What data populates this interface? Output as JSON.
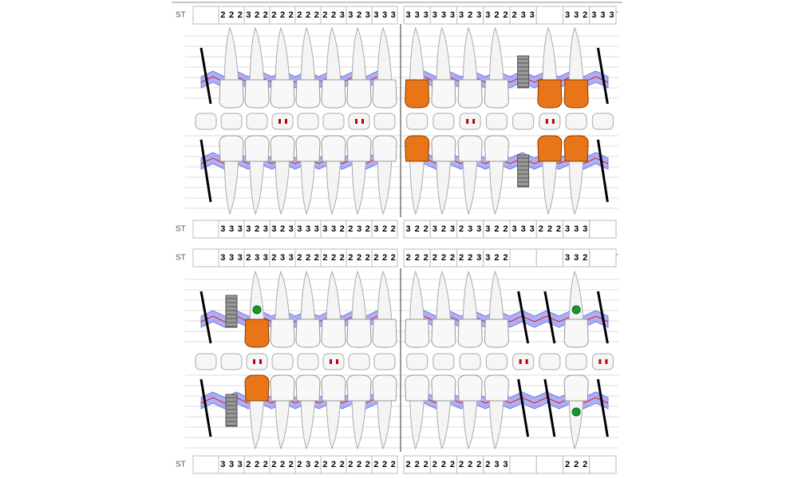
{
  "rows": [
    {
      "label": "ST",
      "cells": [
        [],
        [
          2,
          2,
          2
        ],
        [
          3,
          2,
          2
        ],
        [
          2,
          2,
          2
        ],
        [
          2,
          2,
          2
        ],
        [
          2,
          2,
          3
        ],
        [
          3,
          2,
          3
        ],
        [
          3,
          3,
          3
        ]
      ]
    },
    {
      "label": "ST",
      "cells": [
        [
          3,
          3,
          3
        ],
        [
          3,
          3,
          3
        ],
        [
          3,
          2,
          3
        ],
        [
          3,
          2,
          2
        ],
        [
          2,
          3,
          3
        ],
        [],
        [
          3,
          3,
          2
        ],
        [
          3,
          3,
          3
        ]
      ]
    },
    {
      "label": "ST",
      "cells": [
        [],
        [
          3,
          3,
          3
        ],
        [
          3,
          2,
          3
        ],
        [
          3,
          2,
          3
        ],
        [
          3,
          3,
          3
        ],
        [
          3,
          3,
          2
        ],
        [
          2,
          3,
          2
        ],
        [
          3,
          2,
          2
        ]
      ]
    },
    {
      "cells": [
        [
          3,
          2,
          2
        ],
        [
          3,
          2,
          3
        ],
        [
          2,
          3,
          3
        ],
        [
          3,
          2,
          2
        ],
        [
          3,
          3,
          3
        ],
        [
          2,
          2,
          2
        ],
        [
          3,
          3,
          3
        ],
        []
      ]
    },
    {
      "label": "ST",
      "cells": [
        [],
        [
          3,
          3,
          3
        ],
        [
          2,
          3,
          3
        ],
        [
          2,
          3,
          3
        ],
        [
          2,
          2,
          2
        ],
        [
          2,
          2,
          2
        ],
        [
          2,
          2,
          2
        ],
        [
          2,
          2,
          2
        ]
      ]
    },
    {
      "label": "ST",
      "cells": [
        [
          2,
          2,
          2
        ],
        [
          2,
          2,
          2
        ],
        [
          2,
          2,
          3
        ],
        [
          3,
          2,
          2
        ],
        [],
        [],
        [
          3,
          3,
          2
        ],
        []
      ]
    },
    {
      "label": "ST",
      "cells": [
        [],
        [
          3,
          3,
          3
        ],
        [
          2,
          2,
          2
        ],
        [
          2,
          2,
          2
        ],
        [
          2,
          3,
          2
        ],
        [
          2,
          2,
          2
        ],
        [
          2,
          2,
          2
        ],
        [
          2,
          2,
          2
        ]
      ]
    },
    {
      "cells": [
        [
          2,
          2,
          2
        ],
        [
          2,
          2,
          2
        ],
        [
          2,
          2,
          2
        ],
        [
          2,
          3,
          3
        ],
        [],
        [],
        [
          2,
          2,
          2
        ],
        []
      ]
    }
  ]
}
